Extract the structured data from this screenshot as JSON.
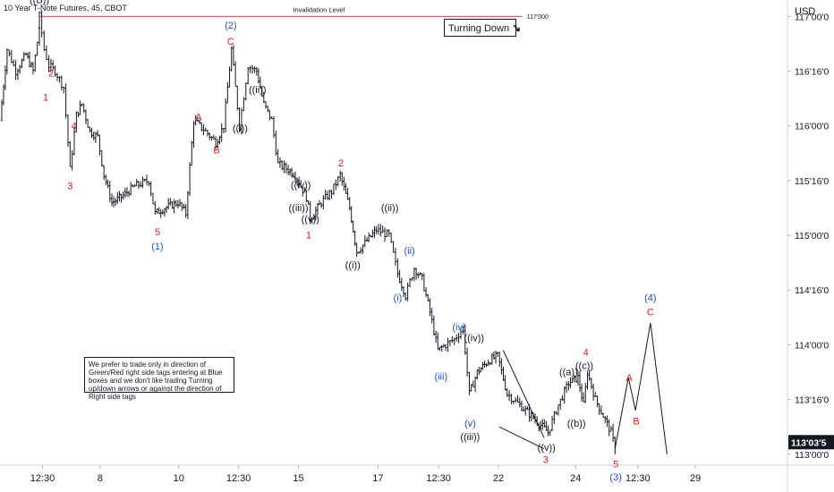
{
  "header": {
    "symbol_label": "10 Year T-Note Futures, 45, CBOT",
    "currency": "USD"
  },
  "turning_box": {
    "label": "Turning Down",
    "icon": "down-right-arrow-icon"
  },
  "note_box": {
    "text": "We prefer to trade only in direction of Green/Red right side tags entering at Blue boxes and we don't like trading Turning up/down arrows or against the direction of Right side tags"
  },
  "invalidation": {
    "label": "Invalidation Level",
    "price": 117.0,
    "price_label": "117'000"
  },
  "colors": {
    "background": "#ffffff",
    "bars": "#131722",
    "axis_text": "#131722",
    "invalidation": "#f23645",
    "wave_red": "#e31a1c",
    "wave_blue": "#1e4fc4",
    "wave_black": "#131722",
    "last_price_badge": "#131722"
  },
  "chart_data": {
    "type": "ohlc",
    "instrument": "10 Year T-Note Futures",
    "ylim": [
      112.9,
      117.15
    ],
    "xlim": [
      0,
      100
    ],
    "y_ticks": [
      {
        "value": 117.0,
        "label": "117'00'0"
      },
      {
        "value": 116.5,
        "label": "116'16'0"
      },
      {
        "value": 116.0,
        "label": "116'00'0"
      },
      {
        "value": 115.5,
        "label": "115'16'0"
      },
      {
        "value": 115.0,
        "label": "115'00'0"
      },
      {
        "value": 114.5,
        "label": "114'16'0"
      },
      {
        "value": 114.0,
        "label": "114'00'0"
      },
      {
        "value": 113.5,
        "label": "113'16'0"
      },
      {
        "value": 113.0,
        "label": "113'00'0"
      }
    ],
    "x_ticks": [
      {
        "x": 5.4,
        "label": "12:30"
      },
      {
        "x": 12.7,
        "label": "8"
      },
      {
        "x": 22.7,
        "label": "10"
      },
      {
        "x": 30.3,
        "label": "12:30"
      },
      {
        "x": 37.9,
        "label": "15"
      },
      {
        "x": 48.0,
        "label": "17"
      },
      {
        "x": 55.7,
        "label": "12:30"
      },
      {
        "x": 63.3,
        "label": "22"
      },
      {
        "x": 73.1,
        "label": "24"
      },
      {
        "x": 81.0,
        "label": "12:30"
      },
      {
        "x": 88.3,
        "label": "29"
      }
    ],
    "last_price": {
      "value": 113.11,
      "label": "113'03'5"
    },
    "path": [
      [
        0.0,
        116.05
      ],
      [
        0.9,
        116.7
      ],
      [
        2.0,
        116.5
      ],
      [
        3.3,
        116.65
      ],
      [
        4.2,
        116.5
      ],
      [
        5.0,
        116.9
      ],
      [
        5.0,
        117.0
      ],
      [
        5.6,
        116.7
      ],
      [
        6.2,
        116.55
      ],
      [
        7.0,
        116.5
      ],
      [
        8.1,
        116.35
      ],
      [
        8.9,
        115.6
      ],
      [
        9.7,
        116.1
      ],
      [
        10.4,
        116.2
      ],
      [
        11.4,
        115.95
      ],
      [
        12.4,
        115.9
      ],
      [
        13.2,
        115.55
      ],
      [
        14.2,
        115.3
      ],
      [
        15.4,
        115.35
      ],
      [
        17.1,
        115.45
      ],
      [
        18.9,
        115.5
      ],
      [
        19.7,
        115.2
      ],
      [
        20.9,
        115.25
      ],
      [
        22.6,
        115.3
      ],
      [
        23.6,
        115.2
      ],
      [
        24.6,
        116.05
      ],
      [
        26.1,
        115.95
      ],
      [
        27.4,
        115.85
      ],
      [
        28.4,
        116.0
      ],
      [
        29.4,
        116.7
      ],
      [
        30.4,
        116.0
      ],
      [
        31.5,
        116.55
      ],
      [
        32.6,
        116.5
      ],
      [
        33.5,
        116.2
      ],
      [
        34.5,
        116.05
      ],
      [
        35.3,
        115.65
      ],
      [
        36.6,
        115.6
      ],
      [
        37.5,
        115.55
      ],
      [
        38.9,
        115.35
      ],
      [
        39.4,
        115.15
      ],
      [
        40.8,
        115.3
      ],
      [
        42.1,
        115.4
      ],
      [
        43.2,
        115.55
      ],
      [
        44.4,
        115.25
      ],
      [
        45.3,
        114.85
      ],
      [
        46.6,
        114.95
      ],
      [
        47.8,
        115.05
      ],
      [
        49.4,
        115.0
      ],
      [
        50.5,
        114.65
      ],
      [
        51.5,
        114.45
      ],
      [
        52.6,
        114.7
      ],
      [
        53.6,
        114.6
      ],
      [
        54.6,
        114.3
      ],
      [
        55.6,
        113.95
      ],
      [
        56.6,
        114.0
      ],
      [
        57.7,
        114.05
      ],
      [
        58.8,
        114.15
      ],
      [
        59.6,
        113.55
      ],
      [
        60.6,
        113.75
      ],
      [
        62.0,
        113.85
      ],
      [
        63.2,
        113.9
      ],
      [
        64.4,
        113.55
      ],
      [
        66.0,
        113.45
      ],
      [
        68.2,
        113.3
      ],
      [
        69.6,
        113.2
      ],
      [
        70.9,
        113.45
      ],
      [
        72.2,
        113.65
      ],
      [
        73.4,
        113.7
      ],
      [
        74.1,
        113.45
      ],
      [
        74.6,
        113.75
      ],
      [
        75.6,
        113.5
      ],
      [
        76.6,
        113.35
      ],
      [
        77.6,
        113.2
      ],
      [
        78.1,
        113.05
      ]
    ],
    "projection": [
      [
        78.1,
        113.05
      ],
      [
        79.8,
        113.7
      ],
      [
        80.7,
        113.4
      ],
      [
        82.6,
        114.2
      ],
      [
        84.7,
        113.0
      ]
    ],
    "trendlines": [
      [
        [
          63.4,
          113.25
        ],
        [
          69.1,
          113.05
        ]
      ],
      [
        [
          63.9,
          113.95
        ],
        [
          69.1,
          113.15
        ]
      ]
    ],
    "wave_labels": [
      {
        "text": "((B))",
        "x": 5.0,
        "y": 117.12,
        "color": "black"
      },
      {
        "text": "2",
        "x": 6.5,
        "y": 116.45,
        "color": "red"
      },
      {
        "text": "1",
        "x": 5.8,
        "y": 116.23,
        "color": "red"
      },
      {
        "text": "4",
        "x": 9.4,
        "y": 115.97,
        "color": "red"
      },
      {
        "text": "3",
        "x": 8.9,
        "y": 115.42,
        "color": "red"
      },
      {
        "text": "5",
        "x": 20.0,
        "y": 115.0,
        "color": "red"
      },
      {
        "text": "(1)",
        "x": 20.0,
        "y": 114.87,
        "color": "blue"
      },
      {
        "text": "(2)",
        "x": 29.3,
        "y": 116.89,
        "color": "blue"
      },
      {
        "text": "C",
        "x": 29.3,
        "y": 116.74,
        "color": "red"
      },
      {
        "text": "A",
        "x": 25.2,
        "y": 116.05,
        "color": "red"
      },
      {
        "text": "B",
        "x": 27.5,
        "y": 115.75,
        "color": "red"
      },
      {
        "text": "((ii))",
        "x": 32.7,
        "y": 116.3,
        "color": "black"
      },
      {
        "text": "((i))",
        "x": 30.5,
        "y": 115.95,
        "color": "black"
      },
      {
        "text": "2",
        "x": 43.3,
        "y": 115.63,
        "color": "red"
      },
      {
        "text": "((iv))",
        "x": 38.2,
        "y": 115.43,
        "color": "black"
      },
      {
        "text": "((iii))",
        "x": 37.9,
        "y": 115.22,
        "color": "black"
      },
      {
        "text": "((v))",
        "x": 39.4,
        "y": 115.12,
        "color": "black"
      },
      {
        "text": "1",
        "x": 39.2,
        "y": 114.97,
        "color": "red"
      },
      {
        "text": "((ii))",
        "x": 49.5,
        "y": 115.22,
        "color": "black"
      },
      {
        "text": "(ii)",
        "x": 52.0,
        "y": 114.83,
        "color": "blue"
      },
      {
        "text": "((i))",
        "x": 44.8,
        "y": 114.7,
        "color": "black"
      },
      {
        "text": "(i)",
        "x": 50.5,
        "y": 114.4,
        "color": "blue"
      },
      {
        "text": "(iv)",
        "x": 58.3,
        "y": 114.13,
        "color": "blue"
      },
      {
        "text": "((iv))",
        "x": 60.2,
        "y": 114.03,
        "color": "black"
      },
      {
        "text": "(iii)",
        "x": 56.0,
        "y": 113.68,
        "color": "blue"
      },
      {
        "text": "(v)",
        "x": 59.7,
        "y": 113.25,
        "color": "blue"
      },
      {
        "text": "((iii))",
        "x": 59.7,
        "y": 113.13,
        "color": "black"
      },
      {
        "text": "((v))",
        "x": 69.4,
        "y": 113.03,
        "color": "black"
      },
      {
        "text": "3",
        "x": 69.3,
        "y": 112.92,
        "color": "red"
      },
      {
        "text": "((a))",
        "x": 72.2,
        "y": 113.72,
        "color": "black"
      },
      {
        "text": "4",
        "x": 74.4,
        "y": 113.9,
        "color": "red"
      },
      {
        "text": "((c))",
        "x": 74.2,
        "y": 113.78,
        "color": "black"
      },
      {
        "text": "((b))",
        "x": 73.2,
        "y": 113.25,
        "color": "black"
      },
      {
        "text": "5",
        "x": 78.2,
        "y": 112.88,
        "color": "red"
      },
      {
        "text": "(3)",
        "x": 78.2,
        "y": 112.76,
        "color": "blue"
      },
      {
        "text": "A",
        "x": 79.9,
        "y": 113.67,
        "color": "red"
      },
      {
        "text": "B",
        "x": 80.8,
        "y": 113.27,
        "color": "red"
      },
      {
        "text": "(4)",
        "x": 82.6,
        "y": 114.4,
        "color": "blue"
      },
      {
        "text": "C",
        "x": 82.6,
        "y": 114.27,
        "color": "red"
      }
    ]
  }
}
